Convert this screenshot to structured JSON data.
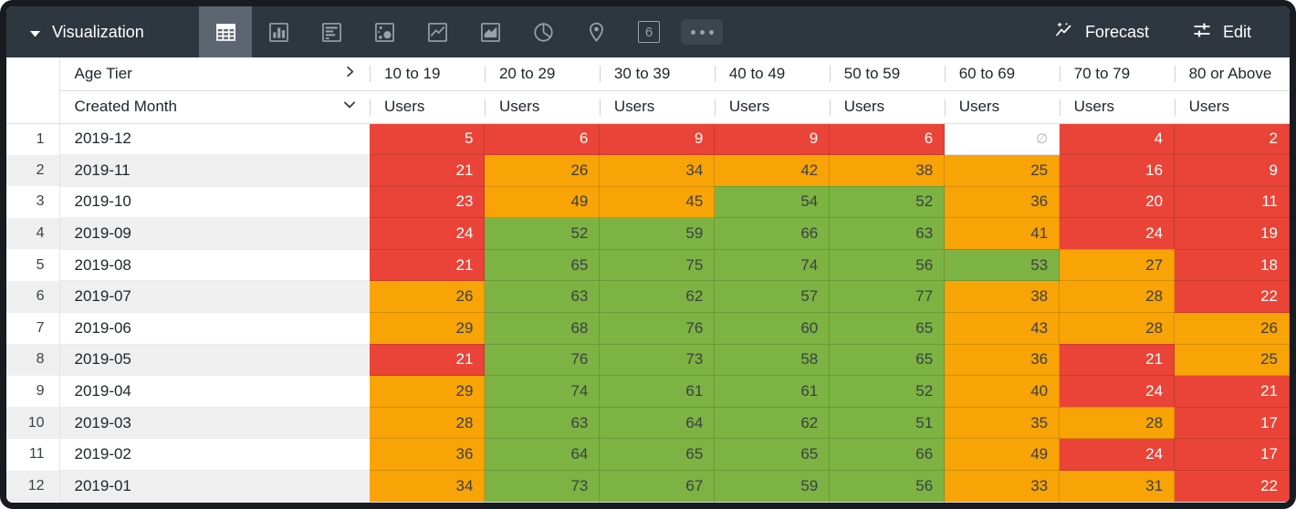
{
  "toolbar": {
    "title": "Visualization",
    "viz_types": [
      {
        "name": "table",
        "selected": true
      },
      {
        "name": "column-chart",
        "selected": false
      },
      {
        "name": "bar-chart",
        "selected": false
      },
      {
        "name": "scatterplot",
        "selected": false
      },
      {
        "name": "line-chart",
        "selected": false
      },
      {
        "name": "area-chart",
        "selected": false
      },
      {
        "name": "pie-chart",
        "selected": false
      },
      {
        "name": "map",
        "selected": false
      },
      {
        "name": "single-value",
        "selected": false
      },
      {
        "name": "more-options",
        "selected": false
      }
    ],
    "single_value_glyph": "6",
    "forecast_label": "Forecast",
    "edit_label": "Edit"
  },
  "table": {
    "pivot_field": "Age Tier",
    "row_field": "Created Month",
    "measure_label": "Users",
    "columns": [
      "10 to 19",
      "20 to 29",
      "30 to 39",
      "40 to 49",
      "50 to 59",
      "60 to 69",
      "70 to 79",
      "80 or Above"
    ],
    "null_symbol": "∅",
    "rows": [
      {
        "num": "1",
        "month": "2019-12",
        "values": [
          5,
          6,
          9,
          9,
          6,
          null,
          4,
          2
        ]
      },
      {
        "num": "2",
        "month": "2019-11",
        "values": [
          21,
          26,
          34,
          42,
          38,
          25,
          16,
          9
        ]
      },
      {
        "num": "3",
        "month": "2019-10",
        "values": [
          23,
          49,
          45,
          54,
          52,
          36,
          20,
          11
        ]
      },
      {
        "num": "4",
        "month": "2019-09",
        "values": [
          24,
          52,
          59,
          66,
          63,
          41,
          24,
          19
        ]
      },
      {
        "num": "5",
        "month": "2019-08",
        "values": [
          21,
          65,
          75,
          74,
          56,
          53,
          27,
          18
        ]
      },
      {
        "num": "6",
        "month": "2019-07",
        "values": [
          26,
          63,
          62,
          57,
          77,
          38,
          28,
          22
        ]
      },
      {
        "num": "7",
        "month": "2019-06",
        "values": [
          29,
          68,
          76,
          60,
          65,
          43,
          28,
          26
        ]
      },
      {
        "num": "8",
        "month": "2019-05",
        "values": [
          21,
          76,
          73,
          58,
          65,
          36,
          21,
          25
        ]
      },
      {
        "num": "9",
        "month": "2019-04",
        "values": [
          29,
          74,
          61,
          61,
          52,
          40,
          24,
          21
        ]
      },
      {
        "num": "10",
        "month": "2019-03",
        "values": [
          28,
          63,
          64,
          62,
          51,
          35,
          28,
          17
        ]
      },
      {
        "num": "11",
        "month": "2019-02",
        "values": [
          36,
          64,
          65,
          65,
          66,
          49,
          24,
          17
        ]
      },
      {
        "num": "12",
        "month": "2019-01",
        "values": [
          34,
          73,
          67,
          59,
          56,
          33,
          31,
          22
        ]
      }
    ]
  },
  "formatting": {
    "thresholds": {
      "red_below": 25,
      "green_from": 50
    },
    "colors": {
      "red": "#e94437",
      "orange": "#f8a306",
      "green": "#7cb342",
      "dark_text": "#3b4045",
      "light_text": "#ffffff",
      "null_text": "#b4b8bc",
      "topbar_bg": "#2e3640",
      "selected_tab_bg": "#5d6670"
    }
  }
}
